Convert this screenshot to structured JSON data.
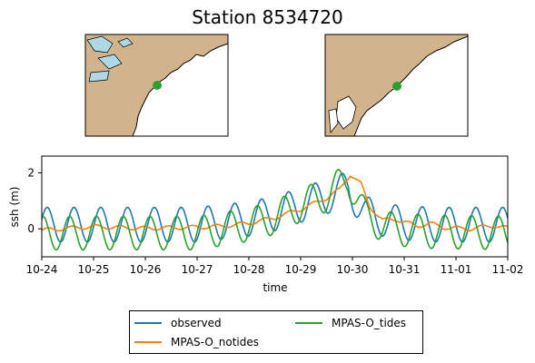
{
  "title": "Station 8534720",
  "colors": {
    "land": "#d2b48c",
    "water": "#add8e6",
    "station_marker": "#2ca02c"
  },
  "chart_data": {
    "type": "line",
    "xlabel": "time",
    "ylabel": "ssh (m)",
    "xlim": [
      "2023-10-24",
      "2023-11-02"
    ],
    "ylim": [
      -1.0,
      2.6
    ],
    "x_ticks": [
      "10-24",
      "10-25",
      "10-26",
      "10-27",
      "10-28",
      "10-29",
      "10-30",
      "10-31",
      "11-01",
      "11-02"
    ],
    "y_ticks": [
      0,
      2
    ],
    "grid": false,
    "legend_location": "lower-center",
    "tidal_period_hours": 12.42,
    "series": [
      {
        "name": "observed",
        "color": "#1f77b4",
        "amplitude": 0.62,
        "phase_hours": 2.5,
        "mean_level": [
          [
            "2023-10-24T00:00",
            0.15
          ],
          [
            "2023-10-27T00:00",
            0.15
          ],
          [
            "2023-10-28T00:00",
            0.35
          ],
          [
            "2023-10-28T12:00",
            0.55
          ],
          [
            "2023-10-29T00:00",
            0.85
          ],
          [
            "2023-10-29T12:00",
            1.15
          ],
          [
            "2023-10-29T22:00",
            1.45
          ],
          [
            "2023-10-30T06:00",
            0.55
          ],
          [
            "2023-10-30T18:00",
            0.25
          ],
          [
            "2023-10-31T12:00",
            0.15
          ],
          [
            "2023-11-02T00:00",
            0.15
          ]
        ]
      },
      {
        "name": "MPAS-O_notides",
        "color": "#ff7f0e",
        "points": [
          [
            "2023-10-24T00:00",
            -0.05
          ],
          [
            "2023-10-24T12:00",
            0.02
          ],
          [
            "2023-10-25T00:00",
            0.08
          ],
          [
            "2023-10-25T12:00",
            0.05
          ],
          [
            "2023-10-26T00:00",
            0.02
          ],
          [
            "2023-10-26T12:00",
            0.04
          ],
          [
            "2023-10-27T00:00",
            0.06
          ],
          [
            "2023-10-27T12:00",
            0.1
          ],
          [
            "2023-10-28T00:00",
            0.2
          ],
          [
            "2023-10-28T12:00",
            0.4
          ],
          [
            "2023-10-29T00:00",
            0.7
          ],
          [
            "2023-10-29T06:00",
            0.9
          ],
          [
            "2023-10-29T12:00",
            1.1
          ],
          [
            "2023-10-29T18:00",
            1.4
          ],
          [
            "2023-10-29T23:00",
            1.95
          ],
          [
            "2023-10-30T04:00",
            1.6
          ],
          [
            "2023-10-30T08:00",
            0.8
          ],
          [
            "2023-10-30T14:00",
            0.3
          ],
          [
            "2023-10-30T20:00",
            0.35
          ],
          [
            "2023-10-31T06:00",
            0.1
          ],
          [
            "2023-10-31T12:00",
            0.2
          ],
          [
            "2023-10-31T18:00",
            0.05
          ],
          [
            "2023-11-01T06:00",
            0.0
          ],
          [
            "2023-11-01T18:00",
            0.12
          ],
          [
            "2023-11-02T00:00",
            0.02
          ]
        ],
        "wiggle_amplitude": 0.07
      },
      {
        "name": "MPAS-O_tides",
        "color": "#2ca02c",
        "amplitude": 0.6,
        "phase_hours": 0.5,
        "mean_level": [
          [
            "2023-10-24T00:00",
            -0.15
          ],
          [
            "2023-10-27T00:00",
            -0.15
          ],
          [
            "2023-10-28T00:00",
            0.15
          ],
          [
            "2023-10-28T12:00",
            0.4
          ],
          [
            "2023-10-29T00:00",
            0.85
          ],
          [
            "2023-10-29T12:00",
            1.2
          ],
          [
            "2023-10-29T22:00",
            1.8
          ],
          [
            "2023-10-30T06:00",
            0.45
          ],
          [
            "2023-10-30T18:00",
            0.0
          ],
          [
            "2023-10-31T12:00",
            -0.1
          ],
          [
            "2023-11-02T00:00",
            -0.15
          ]
        ]
      }
    ]
  }
}
